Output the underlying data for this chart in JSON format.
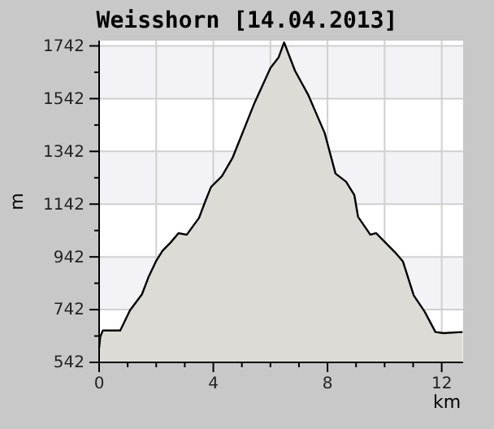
{
  "chart_data": {
    "type": "area",
    "title": "Weisshorn [14.04.2013]",
    "xlabel": "km",
    "ylabel": "m",
    "x": [
      0,
      0.04,
      0.13,
      0.74,
      1.08,
      1.5,
      1.74,
      1.99,
      2.22,
      2.5,
      2.78,
      3.07,
      3.5,
      3.73,
      3.92,
      4.3,
      4.68,
      5.44,
      6.0,
      6.29,
      6.48,
      6.86,
      7.33,
      7.9,
      8.28,
      8.65,
      8.94,
      9.07,
      9.5,
      9.7,
      10.36,
      10.64,
      11.02,
      11.4,
      11.78,
      12.06,
      12.73
    ],
    "series": [
      {
        "color": "#dcdbd5",
        "values": [
          596,
          639,
          663,
          663,
          739,
          800,
          868,
          925,
          965,
          996,
          1032,
          1026,
          1090,
          1156,
          1207,
          1248,
          1319,
          1525,
          1658,
          1699,
          1755,
          1648,
          1555,
          1412,
          1258,
          1227,
          1176,
          1094,
          1026,
          1032,
          960,
          925,
          796,
          735,
          657,
          653,
          657
        ]
      }
    ],
    "xlim": [
      0,
      12.75
    ],
    "ylim": [
      542,
      1762
    ],
    "xticks": [
      0,
      {
        "value": 1,
        "label": null
      },
      {
        "value": 2,
        "label": null
      },
      {
        "value": 3,
        "label": null
      },
      4,
      {
        "value": 5,
        "label": null
      },
      {
        "value": 6,
        "label": null
      },
      {
        "value": 7,
        "label": null
      },
      8,
      {
        "value": 9,
        "label": null
      },
      {
        "value": 10,
        "label": null
      },
      {
        "value": 11,
        "label": null
      },
      12
    ],
    "yticks": [
      542,
      {
        "value": 642,
        "label": null
      },
      742,
      {
        "value": 842,
        "label": null
      },
      942,
      {
        "value": 1042,
        "label": null
      },
      1142,
      {
        "value": 1242,
        "label": null
      },
      1342,
      {
        "value": 1442,
        "label": null
      },
      1542,
      {
        "value": 1642,
        "label": null
      },
      1742
    ],
    "grid": true
  }
}
